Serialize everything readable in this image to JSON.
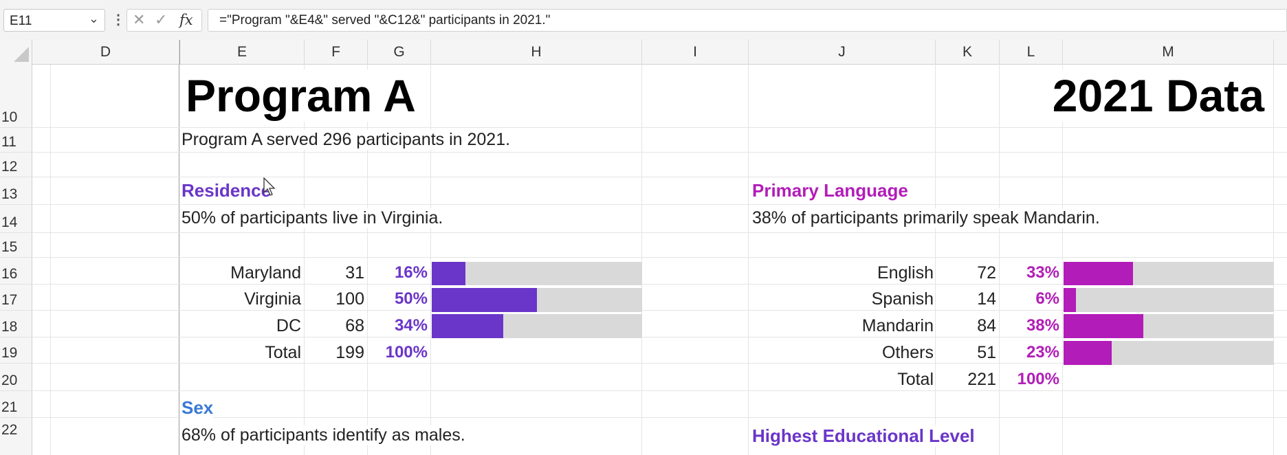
{
  "formula_bar": {
    "name_box": "E11",
    "cancel_glyph": "✕",
    "enter_glyph": "✓",
    "fx_label": "fx",
    "formula": "=\"Program \"&E4&\" served \"&C12&\" participants in 2021.\""
  },
  "columns": [
    "D",
    "E",
    "F",
    "G",
    "H",
    "I",
    "J",
    "K",
    "L",
    "M"
  ],
  "rows": [
    "10",
    "11",
    "12",
    "13",
    "14",
    "15",
    "16",
    "17",
    "18",
    "19",
    "20",
    "21",
    "22"
  ],
  "sheet": {
    "title_left": "Program A",
    "title_right": "2021 Data",
    "summary": "Program A served 296 participants in 2021.",
    "residence": {
      "heading": "Residence",
      "statement": "50% of participants live in Virginia.",
      "accent": "#6a35c9",
      "items": [
        {
          "label": "Maryland",
          "count": "31",
          "pct": "16%",
          "fraction": 0.16
        },
        {
          "label": "Virginia",
          "count": "100",
          "pct": "50%",
          "fraction": 0.5
        },
        {
          "label": "DC",
          "count": "68",
          "pct": "34%",
          "fraction": 0.34
        }
      ],
      "total": {
        "label": "Total",
        "count": "199",
        "pct": "100%"
      }
    },
    "language": {
      "heading": "Primary Language",
      "statement": "38% of participants primarily speak Mandarin.",
      "accent": "#b21cb8",
      "items": [
        {
          "label": "English",
          "count": "72",
          "pct": "33%",
          "fraction": 0.33
        },
        {
          "label": "Spanish",
          "count": "14",
          "pct": "6%",
          "fraction": 0.06
        },
        {
          "label": "Mandarin",
          "count": "84",
          "pct": "38%",
          "fraction": 0.38
        },
        {
          "label": "Others",
          "count": "51",
          "pct": "23%",
          "fraction": 0.23
        }
      ],
      "total": {
        "label": "Total",
        "count": "221",
        "pct": "100%"
      }
    },
    "sex": {
      "heading": "Sex",
      "statement": "68% of participants identify as males."
    },
    "education": {
      "heading": "Highest Educational Level"
    }
  },
  "colors": {
    "bar_background": "#d9d9d9",
    "residence_accent": "#6a35c9",
    "language_accent": "#b21cb8",
    "sex_accent": "#3a79d6"
  }
}
